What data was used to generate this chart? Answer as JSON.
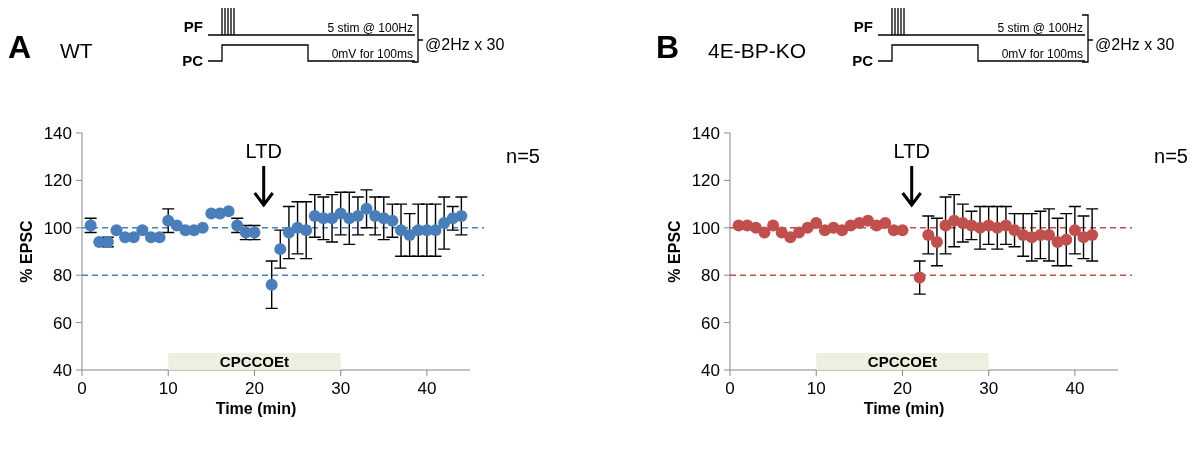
{
  "chart_data": [
    {
      "type": "scatter",
      "title": "WT",
      "xlabel": "Time (min)",
      "ylabel": "% EPSC",
      "xlim": [
        0,
        45
      ],
      "xticks": [
        0,
        10,
        20,
        30,
        40
      ],
      "ylim": [
        40,
        140
      ],
      "yticks": [
        40,
        60,
        80,
        100,
        120,
        140
      ],
      "marker": "circle",
      "grid": false,
      "annotations": [
        "A",
        "n=5",
        "PF",
        "PC",
        "5 stim @ 100Hz",
        "0mV for 100ms",
        "@2Hz x 30",
        "LTD"
      ],
      "ref_lines": [
        {
          "axis": "y",
          "value": 100,
          "color": "#4a7ebb",
          "line_style": "dashed"
        },
        {
          "axis": "y",
          "value": 80,
          "color": "#4a7ebb",
          "line_style": "dashed"
        }
      ],
      "bands": [
        {
          "axis": "x",
          "from": 10,
          "to": 30,
          "label": "CPCCOEt",
          "color": "#ebf1de"
        }
      ],
      "series": [
        {
          "color": "#4a7ebb",
          "x": [
            1,
            2,
            3,
            4,
            5,
            6,
            7,
            8,
            9,
            10,
            11,
            12,
            13,
            14,
            15,
            16,
            17,
            18,
            19,
            20,
            22,
            23,
            24,
            25,
            26,
            27,
            28,
            29,
            30,
            31,
            32,
            33,
            34,
            35,
            36,
            37,
            38,
            39,
            40,
            41,
            42,
            43,
            44
          ],
          "values": [
            101,
            94,
            94,
            99,
            96,
            96,
            99,
            96,
            96,
            103,
            101,
            99,
            99,
            100,
            106,
            106,
            107,
            101,
            98,
            98,
            76,
            91,
            98,
            100,
            99,
            105,
            104,
            104,
            106,
            104,
            105,
            108,
            105,
            104,
            103,
            99,
            97,
            99,
            99,
            99,
            102,
            104,
            105
          ],
          "errors": [
            3,
            null,
            2,
            null,
            null,
            null,
            null,
            null,
            null,
            5,
            null,
            null,
            null,
            null,
            null,
            null,
            null,
            3,
            3,
            3,
            10,
            8,
            11,
            11,
            12,
            9,
            9,
            10,
            9,
            11,
            8,
            8,
            8,
            9,
            7,
            11,
            9,
            11,
            11,
            11,
            11,
            5,
            8
          ]
        }
      ]
    },
    {
      "type": "scatter",
      "title": "4E-BP-KO",
      "xlabel": "Time (min)",
      "ylabel": "% EPSC",
      "xlim": [
        0,
        45
      ],
      "xticks": [
        0,
        10,
        20,
        30,
        40
      ],
      "ylim": [
        40,
        140
      ],
      "yticks": [
        40,
        60,
        80,
        100,
        120,
        140
      ],
      "marker": "circle",
      "grid": false,
      "annotations": [
        "B",
        "n=5",
        "PF",
        "PC",
        "5 stim @ 100Hz",
        "0mV for 100ms",
        "@2Hz x 30",
        "LTD"
      ],
      "ref_lines": [
        {
          "axis": "y",
          "value": 100,
          "color": "#c0504d",
          "line_style": "dashed"
        },
        {
          "axis": "y",
          "value": 80,
          "color": "#c0504d",
          "line_style": "dashed"
        }
      ],
      "bands": [
        {
          "axis": "x",
          "from": 10,
          "to": 30,
          "label": "CPCCOEt",
          "color": "#ebf1de"
        }
      ],
      "series": [
        {
          "color": "#c0504d",
          "x": [
            1,
            2,
            3,
            4,
            5,
            6,
            7,
            8,
            9,
            10,
            11,
            12,
            13,
            14,
            15,
            16,
            17,
            18,
            19,
            20,
            22,
            23,
            24,
            25,
            26,
            27,
            28,
            29,
            30,
            31,
            32,
            33,
            34,
            35,
            36,
            37,
            38,
            39,
            40,
            41,
            42
          ],
          "values": [
            101,
            101,
            100,
            98,
            101,
            98,
            96,
            98,
            100,
            102,
            99,
            100,
            99,
            101,
            102,
            103,
            101,
            102,
            99,
            99,
            79,
            97,
            94,
            101,
            103,
            102,
            101,
            100,
            101,
            100,
            101,
            99,
            97,
            96,
            97,
            97,
            94,
            95,
            99,
            96,
            97
          ],
          "errors": [
            null,
            null,
            null,
            null,
            null,
            null,
            null,
            null,
            null,
            null,
            null,
            null,
            null,
            null,
            null,
            null,
            null,
            null,
            null,
            null,
            7,
            8,
            10,
            12,
            11,
            8,
            6,
            9,
            8,
            9,
            8,
            7,
            9,
            10,
            10,
            11,
            10,
            11,
            10,
            9,
            11
          ]
        }
      ]
    }
  ]
}
